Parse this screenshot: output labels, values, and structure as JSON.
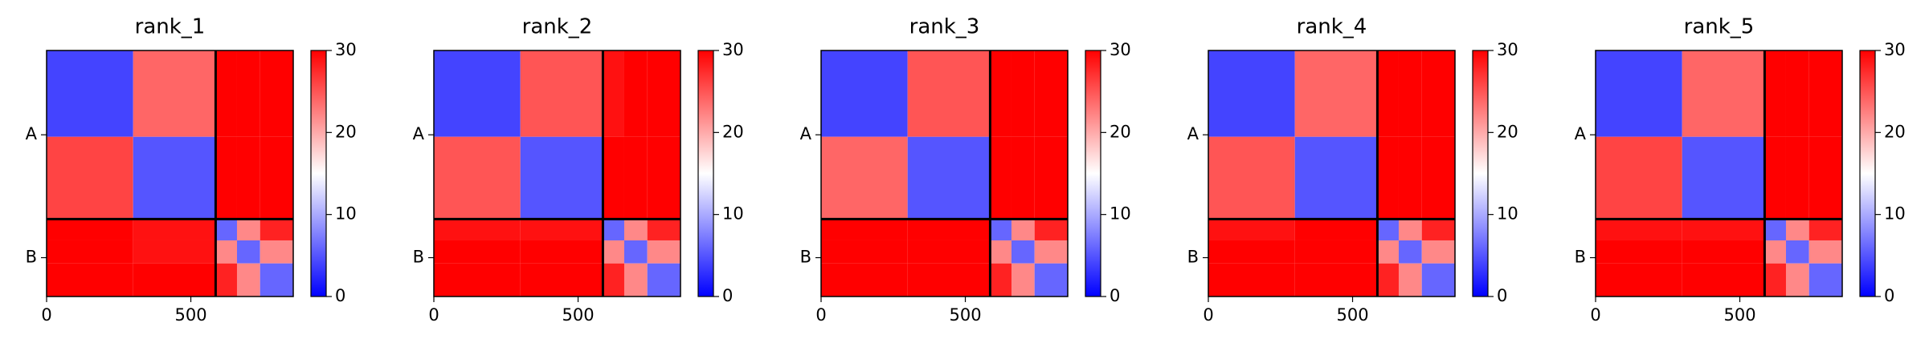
{
  "chart_data": [
    {
      "type": "heatmap",
      "title": "rank_1",
      "edges": [
        0,
        300,
        586,
        660,
        740,
        855
      ],
      "z": [
        [
          4,
          24,
          30,
          30,
          30
        ],
        [
          26,
          5,
          30,
          30,
          30
        ],
        [
          30,
          29,
          6,
          22,
          28
        ],
        [
          30,
          29,
          22,
          6,
          22
        ],
        [
          30,
          30,
          28,
          22,
          6
        ]
      ],
      "xlim": [
        0,
        855
      ],
      "ylim": [
        855,
        0
      ],
      "xticks": [
        0,
        500
      ],
      "yticks": [
        {
          "value": 293,
          "label": "A"
        },
        {
          "value": 720,
          "label": "B"
        }
      ],
      "chain_breaks": [
        586
      ],
      "clim": [
        0,
        30
      ],
      "cticks": [
        0,
        10,
        20,
        30
      ],
      "colormap": [
        "#0000ff",
        "#ffffff",
        "#ff0000"
      ]
    },
    {
      "type": "heatmap",
      "title": "rank_2",
      "edges": [
        0,
        300,
        586,
        660,
        740,
        855
      ],
      "z": [
        [
          4,
          25,
          29,
          30,
          30
        ],
        [
          25,
          5,
          30,
          30,
          30
        ],
        [
          29,
          29,
          6,
          22,
          28
        ],
        [
          30,
          30,
          22,
          6,
          22
        ],
        [
          30,
          30,
          28,
          22,
          6
        ]
      ],
      "xlim": [
        0,
        855
      ],
      "ylim": [
        855,
        0
      ],
      "xticks": [
        0,
        500
      ],
      "yticks": [
        {
          "value": 293,
          "label": "A"
        },
        {
          "value": 720,
          "label": "B"
        }
      ],
      "chain_breaks": [
        586
      ],
      "clim": [
        0,
        30
      ],
      "cticks": [
        0,
        10,
        20,
        30
      ],
      "colormap": [
        "#0000ff",
        "#ffffff",
        "#ff0000"
      ]
    },
    {
      "type": "heatmap",
      "title": "rank_3",
      "edges": [
        0,
        300,
        586,
        660,
        740,
        855
      ],
      "z": [
        [
          4,
          25,
          30,
          30,
          30
        ],
        [
          24,
          5,
          30,
          30,
          30
        ],
        [
          30,
          30,
          6,
          22,
          28
        ],
        [
          30,
          30,
          22,
          6,
          22
        ],
        [
          30,
          30,
          28,
          22,
          6
        ]
      ],
      "xlim": [
        0,
        855
      ],
      "ylim": [
        855,
        0
      ],
      "xticks": [
        0,
        500
      ],
      "yticks": [
        {
          "value": 293,
          "label": "A"
        },
        {
          "value": 720,
          "label": "B"
        }
      ],
      "chain_breaks": [
        586
      ],
      "clim": [
        0,
        30
      ],
      "cticks": [
        0,
        10,
        20,
        30
      ],
      "colormap": [
        "#0000ff",
        "#ffffff",
        "#ff0000"
      ]
    },
    {
      "type": "heatmap",
      "title": "rank_4",
      "edges": [
        0,
        300,
        586,
        660,
        740,
        855
      ],
      "z": [
        [
          4,
          24,
          30,
          30,
          30
        ],
        [
          25,
          5,
          30,
          30,
          30
        ],
        [
          29,
          30,
          6,
          22,
          28
        ],
        [
          30,
          30,
          22,
          6,
          22
        ],
        [
          30,
          30,
          28,
          22,
          6
        ]
      ],
      "xlim": [
        0,
        855
      ],
      "ylim": [
        855,
        0
      ],
      "xticks": [
        0,
        500
      ],
      "yticks": [
        {
          "value": 293,
          "label": "A"
        },
        {
          "value": 720,
          "label": "B"
        }
      ],
      "chain_breaks": [
        586
      ],
      "clim": [
        0,
        30
      ],
      "cticks": [
        0,
        10,
        20,
        30
      ],
      "colormap": [
        "#0000ff",
        "#ffffff",
        "#ff0000"
      ]
    },
    {
      "type": "heatmap",
      "title": "rank_5",
      "edges": [
        0,
        300,
        586,
        660,
        740,
        855
      ],
      "z": [
        [
          4,
          24,
          30,
          30,
          30
        ],
        [
          26,
          5,
          30,
          30,
          30
        ],
        [
          29,
          29,
          6,
          22,
          28
        ],
        [
          30,
          30,
          22,
          6,
          22
        ],
        [
          30,
          30,
          28,
          22,
          6
        ]
      ],
      "xlim": [
        0,
        855
      ],
      "ylim": [
        855,
        0
      ],
      "xticks": [
        0,
        500
      ],
      "yticks": [
        {
          "value": 293,
          "label": "A"
        },
        {
          "value": 720,
          "label": "B"
        }
      ],
      "chain_breaks": [
        586
      ],
      "clim": [
        0,
        30
      ],
      "cticks": [
        0,
        10,
        20,
        30
      ],
      "colormap": [
        "#0000ff",
        "#ffffff",
        "#ff0000"
      ]
    }
  ]
}
